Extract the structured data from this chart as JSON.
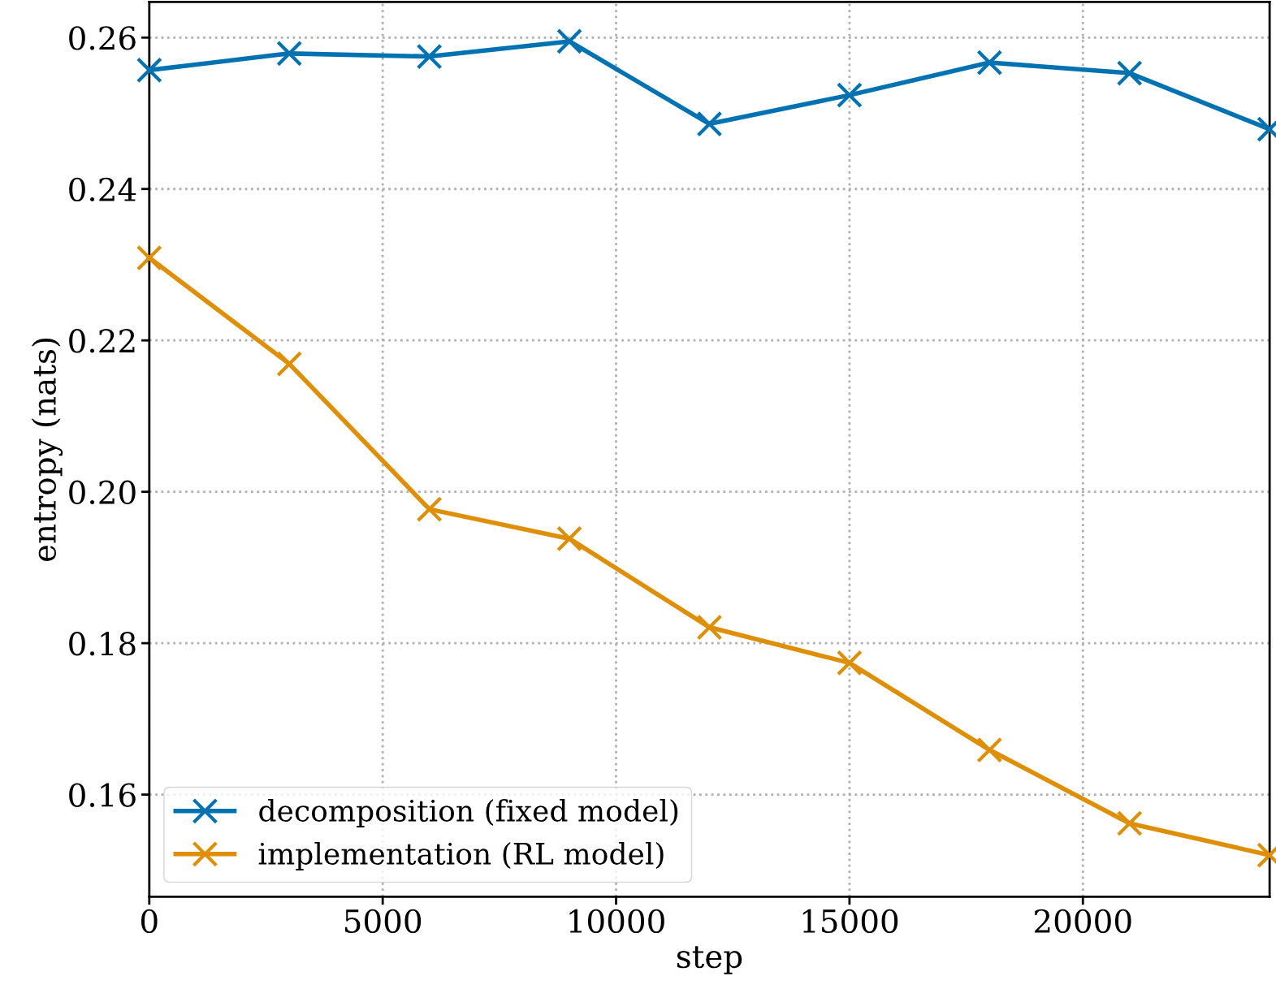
{
  "chart_data": {
    "type": "line",
    "xlabel": "step",
    "ylabel": "entropy (nats)",
    "x": [
      0,
      3000,
      6000,
      9000,
      12000,
      15000,
      18000,
      21000,
      24000
    ],
    "series": [
      {
        "name": "decomposition (fixed model)",
        "color": "#0072b2",
        "values": [
          0.2557,
          0.2579,
          0.2575,
          0.2595,
          0.2486,
          0.2524,
          0.2567,
          0.2553,
          0.2479
        ]
      },
      {
        "name": "implementation (RL model)",
        "color": "#de8f05",
        "values": [
          0.2309,
          0.2169,
          0.1977,
          0.1938,
          0.1821,
          0.1774,
          0.1659,
          0.1562,
          0.152
        ]
      }
    ],
    "xlim": [
      0,
      24000
    ],
    "xticks": [
      0,
      5000,
      10000,
      15000,
      20000
    ],
    "ylim": [
      0.1465,
      0.2647
    ],
    "yticks": [
      {
        "value": 0.16,
        "label": "0.16"
      },
      {
        "value": 0.18,
        "label": "0.18"
      },
      {
        "value": 0.2,
        "label": "0.20"
      },
      {
        "value": 0.22,
        "label": "0.22"
      },
      {
        "value": 0.24,
        "label": "0.24"
      },
      {
        "value": 0.26,
        "label": "0.26"
      }
    ],
    "grid": true,
    "legend": "bottom left",
    "marker": "cross",
    "line_style": "solid"
  }
}
